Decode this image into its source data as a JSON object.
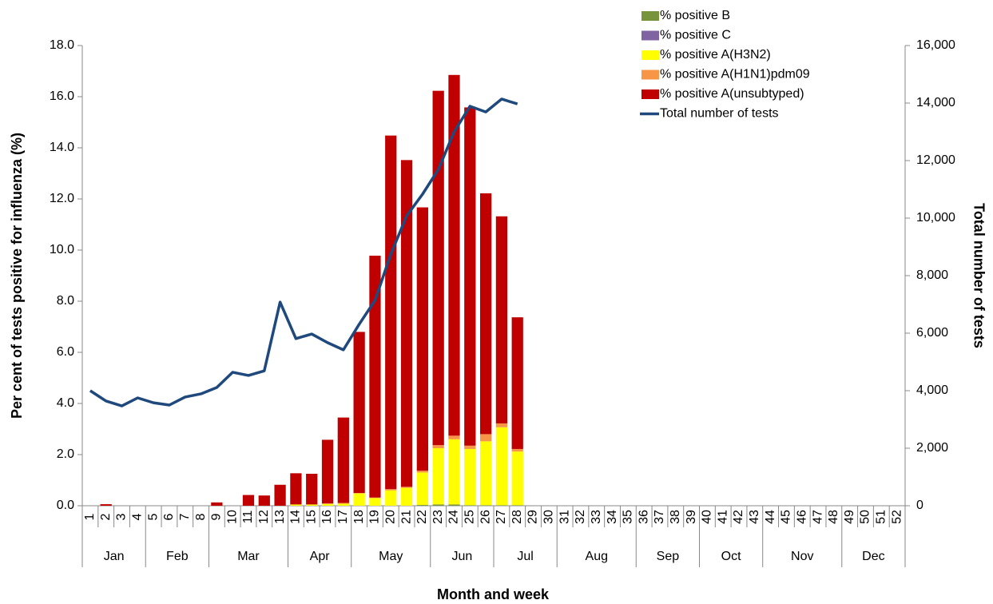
{
  "chart_data": {
    "type": "bar-line",
    "y_label": "Per cent of tests positive for influenza (%)",
    "y2_label": "Total number of tests",
    "x_label": "Month and week",
    "categories": [
      "1",
      "2",
      "3",
      "4",
      "5",
      "6",
      "7",
      "8",
      "9",
      "10",
      "11",
      "12",
      "13",
      "14",
      "15",
      "16",
      "17",
      "18",
      "19",
      "20",
      "21",
      "22",
      "23",
      "24",
      "25",
      "26",
      "27",
      "28",
      "29",
      "30",
      "31",
      "32",
      "33",
      "34",
      "35",
      "36",
      "37",
      "38",
      "39",
      "40",
      "41",
      "42",
      "43",
      "44",
      "45",
      "46",
      "47",
      "48",
      "49",
      "50",
      "51",
      "52"
    ],
    "month_groups": [
      {
        "label": "Jan",
        "span": 4
      },
      {
        "label": "Feb",
        "span": 4
      },
      {
        "label": "Mar",
        "span": 5
      },
      {
        "label": "Apr",
        "span": 4
      },
      {
        "label": "May",
        "span": 5
      },
      {
        "label": "Jun",
        "span": 4
      },
      {
        "label": "Jul",
        "span": 4
      },
      {
        "label": "Aug",
        "span": 5
      },
      {
        "label": "Sep",
        "span": 4
      },
      {
        "label": "Oct",
        "span": 4
      },
      {
        "label": "Nov",
        "span": 5
      },
      {
        "label": "Dec",
        "span": 4
      }
    ],
    "stacked": true,
    "series": [
      {
        "name": "% positive B",
        "type": "bar",
        "color": "#77933c",
        "values": [
          0,
          0,
          0,
          0,
          0,
          0,
          0,
          0,
          0,
          0,
          0,
          0,
          0,
          0,
          0,
          0,
          0,
          0,
          0,
          0,
          0,
          0.03,
          0.05,
          0.05,
          0.02,
          0.02,
          0.02,
          0.02,
          null,
          null,
          null,
          null,
          null,
          null,
          null,
          null,
          null,
          null,
          null,
          null,
          null,
          null,
          null,
          null,
          null,
          null,
          null,
          null,
          null,
          null,
          null,
          null
        ]
      },
      {
        "name": "% positive C",
        "type": "bar",
        "color": "#8064a2",
        "values": [
          0,
          0,
          0,
          0,
          0,
          0,
          0,
          0,
          0,
          0,
          0,
          0,
          0,
          0,
          0,
          0,
          0,
          0,
          0,
          0,
          0,
          0,
          0,
          0,
          0,
          0,
          0,
          0,
          null,
          null,
          null,
          null,
          null,
          null,
          null,
          null,
          null,
          null,
          null,
          null,
          null,
          null,
          null,
          null,
          null,
          null,
          null,
          null,
          null,
          null,
          null,
          null
        ]
      },
      {
        "name": "% positive A(H3N2)",
        "type": "bar",
        "color": "#ffff00",
        "values": [
          0,
          0,
          0,
          0,
          0,
          0,
          0,
          0,
          0,
          0,
          0,
          0,
          0,
          0.05,
          0.05,
          0.07,
          0.08,
          0.48,
          0.3,
          0.6,
          0.7,
          1.27,
          2.2,
          2.55,
          2.2,
          2.5,
          3.05,
          2.1,
          null,
          null,
          null,
          null,
          null,
          null,
          null,
          null,
          null,
          null,
          null,
          null,
          null,
          null,
          null,
          null,
          null,
          null,
          null,
          null,
          null,
          null,
          null,
          null
        ]
      },
      {
        "name": "% positive A(H1N1)pdm09",
        "type": "bar",
        "color": "#f79646",
        "values": [
          0,
          0,
          0,
          0,
          0,
          0,
          0,
          0,
          0,
          0,
          0,
          0,
          0,
          0,
          0,
          0.02,
          0.03,
          0.02,
          0.02,
          0.05,
          0.04,
          0.07,
          0.12,
          0.14,
          0.13,
          0.28,
          0.15,
          0.1,
          null,
          null,
          null,
          null,
          null,
          null,
          null,
          null,
          null,
          null,
          null,
          null,
          null,
          null,
          null,
          null,
          null,
          null,
          null,
          null,
          null,
          null,
          null,
          null
        ]
      },
      {
        "name": "% positive A(unsubtyped)",
        "type": "bar",
        "color": "#c00000",
        "values": [
          0,
          0.06,
          0,
          0,
          0,
          0,
          0,
          0,
          0.13,
          0,
          0.42,
          0.4,
          0.82,
          1.22,
          1.2,
          2.49,
          3.34,
          6.3,
          9.46,
          13.83,
          12.78,
          10.3,
          13.86,
          14.11,
          13.23,
          9.42,
          8.1,
          5.15,
          null,
          null,
          null,
          null,
          null,
          null,
          null,
          null,
          null,
          null,
          null,
          null,
          null,
          null,
          null,
          null,
          null,
          null,
          null,
          null,
          null,
          null,
          null,
          null
        ]
      },
      {
        "name": "Total number of tests",
        "type": "line",
        "axis": "y2",
        "color": "#1f497d",
        "values": [
          4000,
          3640,
          3470,
          3750,
          3580,
          3500,
          3780,
          3890,
          4110,
          4640,
          4530,
          4690,
          7080,
          5810,
          5970,
          5670,
          5420,
          6310,
          7140,
          8750,
          10080,
          10830,
          11690,
          13000,
          13890,
          13690,
          14140,
          13970,
          null,
          null,
          null,
          null,
          null,
          null,
          null,
          null,
          null,
          null,
          null,
          null,
          null,
          null,
          null,
          null,
          null,
          null,
          null,
          null,
          null,
          null,
          null,
          null
        ]
      }
    ],
    "ylim": [
      0,
      18
    ],
    "yticks": [
      {
        "value": 0,
        "label": "0.0"
      },
      {
        "value": 2,
        "label": "2.0"
      },
      {
        "value": 4,
        "label": "4.0"
      },
      {
        "value": 6,
        "label": "6.0"
      },
      {
        "value": 8,
        "label": "8.0"
      },
      {
        "value": 10,
        "label": "10.0"
      },
      {
        "value": 12,
        "label": "12.0"
      },
      {
        "value": 14,
        "label": "14.0"
      },
      {
        "value": 16,
        "label": "16.0"
      },
      {
        "value": 18,
        "label": "18.0"
      }
    ],
    "y2lim": [
      0,
      16000
    ],
    "y2ticks": [
      0,
      {
        "value": 2000,
        "label": "2,000"
      },
      {
        "value": 4000,
        "label": "4,000"
      },
      {
        "value": 6000,
        "label": "6,000"
      },
      {
        "value": 8000,
        "label": "8,000"
      },
      {
        "value": 10000,
        "label": "10,000"
      },
      {
        "value": 12000,
        "label": "12,000"
      },
      {
        "value": 14000,
        "label": "14,000"
      },
      {
        "value": 16000,
        "label": "16,000"
      }
    ],
    "grid": false,
    "legend": "top-right"
  }
}
